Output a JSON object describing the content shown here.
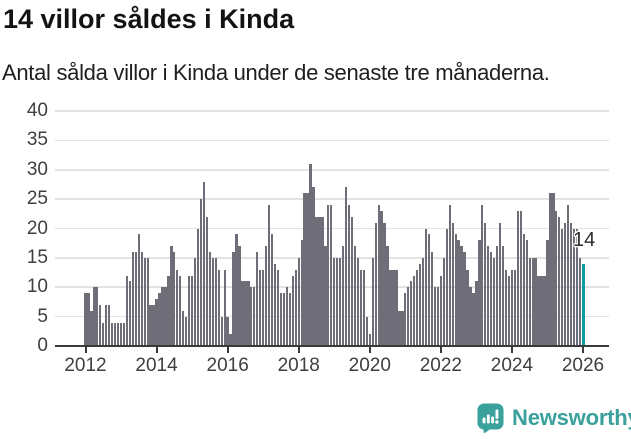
{
  "header": {
    "title": "14 villor såldes i Kinda",
    "subtitle": "Antal sålda villor i Kinda under de senaste tre månaderna."
  },
  "chart_data": {
    "type": "bar",
    "title": "14 villor såldes i Kinda",
    "subtitle": "Antal sålda villor i Kinda under de senaste tre månaderna.",
    "x_unit": "month",
    "x_start": "2012-01",
    "x_end": "2026-01",
    "xticks": [
      2012,
      2014,
      2016,
      2018,
      2020,
      2022,
      2024,
      2026
    ],
    "yticks": [
      0,
      5,
      10,
      15,
      20,
      25,
      30,
      35,
      40
    ],
    "ylim": [
      0,
      40
    ],
    "grid": "horizontal",
    "values": [
      9,
      9,
      6,
      10,
      10,
      7,
      4,
      7,
      7,
      4,
      4,
      4,
      4,
      4,
      12,
      11,
      16,
      16,
      19,
      16,
      15,
      15,
      7,
      7,
      8,
      9,
      10,
      10,
      12,
      17,
      16,
      13,
      12,
      6,
      5,
      12,
      12,
      15,
      20,
      25,
      28,
      22,
      16,
      15,
      15,
      13,
      5,
      13,
      5,
      2,
      16,
      19,
      17,
      11,
      11,
      11,
      10,
      10,
      16,
      13,
      13,
      17,
      24,
      19,
      14,
      13,
      9,
      9,
      10,
      9,
      12,
      13,
      15,
      18,
      26,
      26,
      31,
      27,
      22,
      22,
      22,
      17,
      24,
      24,
      15,
      15,
      15,
      17,
      27,
      24,
      22,
      17,
      15,
      13,
      13,
      5,
      2,
      15,
      21,
      24,
      23,
      21,
      17,
      13,
      13,
      13,
      6,
      6,
      9,
      10,
      11,
      12,
      13,
      14,
      15,
      20,
      19,
      16,
      10,
      10,
      12,
      15,
      20,
      24,
      21,
      19,
      18,
      17,
      16,
      13,
      10,
      9,
      11,
      18,
      24,
      21,
      17,
      16,
      15,
      17,
      21,
      17,
      13,
      12,
      13,
      13,
      23,
      23,
      19,
      18,
      15,
      15,
      15,
      12,
      12,
      12,
      18,
      26,
      26,
      23,
      22,
      20,
      21,
      24,
      21,
      20,
      20,
      15,
      14
    ],
    "highlight_index": 168,
    "annotation": {
      "text": "14"
    },
    "bar_color": "#6f6e78",
    "highlight_color": "#109aa1",
    "axis_color": "#3a3a3a",
    "grid_color": "#e2e2e2",
    "tick_label_color": "#3f3f3f"
  },
  "footer": {
    "brand": "Newsworthy",
    "brand_color": "#3aa19d",
    "logo_icon": "newsworthy-bubble-chart-icon"
  }
}
